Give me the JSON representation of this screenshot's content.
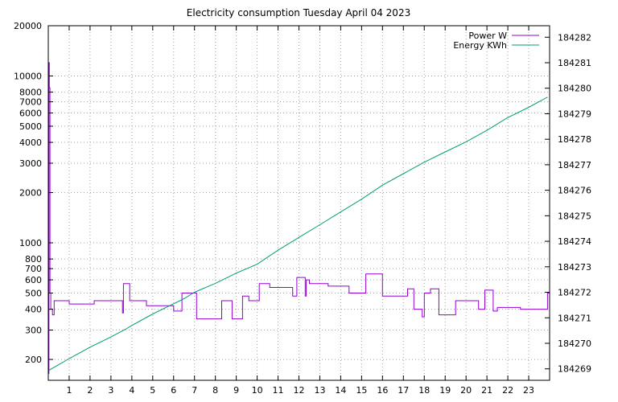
{
  "chart_data": {
    "type": "line",
    "title": "Electricity consumption Tuesday April 04 2023",
    "xlabel": "",
    "ylabel": "",
    "y2label": "",
    "xlim": [
      0,
      24
    ],
    "x_ticks": [
      1,
      2,
      3,
      4,
      5,
      6,
      7,
      8,
      9,
      10,
      11,
      12,
      13,
      14,
      15,
      16,
      17,
      18,
      19,
      20,
      21,
      22,
      23
    ],
    "ylim": [
      150,
      20000
    ],
    "y_scale": "log",
    "y_ticks": [
      200,
      300,
      400,
      500,
      600,
      700,
      800,
      1000,
      2000,
      3000,
      4000,
      5000,
      6000,
      7000,
      8000,
      10000,
      20000
    ],
    "y2lim": [
      184268.55,
      184282.45
    ],
    "y2_ticks": [
      184269,
      184270,
      184271,
      184272,
      184273,
      184274,
      184275,
      184276,
      184277,
      184278,
      184279,
      184280,
      184281,
      184282
    ],
    "grid": true,
    "legend_position": "top-right",
    "colors": {
      "power": "#9400d3",
      "energy": "#009e73"
    },
    "series": [
      {
        "name": "Power W",
        "axis": "y",
        "step": true,
        "points": [
          [
            0,
            165
          ],
          [
            0.03,
            12000
          ],
          [
            0.05,
            8500
          ],
          [
            0.08,
            500
          ],
          [
            0.12,
            400
          ],
          [
            0.2,
            370
          ],
          [
            0.28,
            450
          ],
          [
            1.0,
            430
          ],
          [
            2.2,
            450
          ],
          [
            3.5,
            450
          ],
          [
            3.55,
            380
          ],
          [
            3.6,
            570
          ],
          [
            3.9,
            450
          ],
          [
            4.7,
            420
          ],
          [
            6.0,
            390
          ],
          [
            6.4,
            500
          ],
          [
            7.1,
            350
          ],
          [
            8.3,
            450
          ],
          [
            8.8,
            350
          ],
          [
            9.3,
            480
          ],
          [
            9.6,
            450
          ],
          [
            10.1,
            570
          ],
          [
            10.6,
            540
          ],
          [
            11.7,
            480
          ],
          [
            11.9,
            620
          ],
          [
            12.3,
            480
          ],
          [
            12.35,
            600
          ],
          [
            12.5,
            570
          ],
          [
            13.4,
            550
          ],
          [
            14.4,
            500
          ],
          [
            15.2,
            650
          ],
          [
            16.0,
            480
          ],
          [
            17.2,
            530
          ],
          [
            17.5,
            400
          ],
          [
            17.9,
            360
          ],
          [
            18.0,
            500
          ],
          [
            18.3,
            530
          ],
          [
            18.7,
            370
          ],
          [
            19.5,
            450
          ],
          [
            20.6,
            400
          ],
          [
            20.9,
            520
          ],
          [
            21.3,
            390
          ],
          [
            21.5,
            410
          ],
          [
            22.6,
            400
          ],
          [
            23.8,
            400
          ],
          [
            23.9,
            500
          ]
        ]
      },
      {
        "name": "Energy KWh",
        "axis": "y2",
        "step": false,
        "points": [
          [
            0,
            184268.88
          ],
          [
            0.05,
            184268.95
          ],
          [
            1,
            184269.4
          ],
          [
            2,
            184269.85
          ],
          [
            3,
            184270.25
          ],
          [
            3.7,
            184270.55
          ],
          [
            4,
            184270.7
          ],
          [
            5,
            184271.15
          ],
          [
            6,
            184271.55
          ],
          [
            6.5,
            184271.75
          ],
          [
            7,
            184272.0
          ],
          [
            8,
            184272.35
          ],
          [
            9,
            184272.75
          ],
          [
            10,
            184273.1
          ],
          [
            11,
            184273.65
          ],
          [
            12,
            184274.15
          ],
          [
            13,
            184274.65
          ],
          [
            14,
            184275.15
          ],
          [
            15,
            184275.65
          ],
          [
            16,
            184276.2
          ],
          [
            17,
            184276.65
          ],
          [
            18,
            184277.1
          ],
          [
            19,
            184277.5
          ],
          [
            20,
            184277.9
          ],
          [
            21,
            184278.35
          ],
          [
            22,
            184278.85
          ],
          [
            23,
            184279.25
          ],
          [
            23.9,
            184279.65
          ]
        ]
      }
    ]
  }
}
